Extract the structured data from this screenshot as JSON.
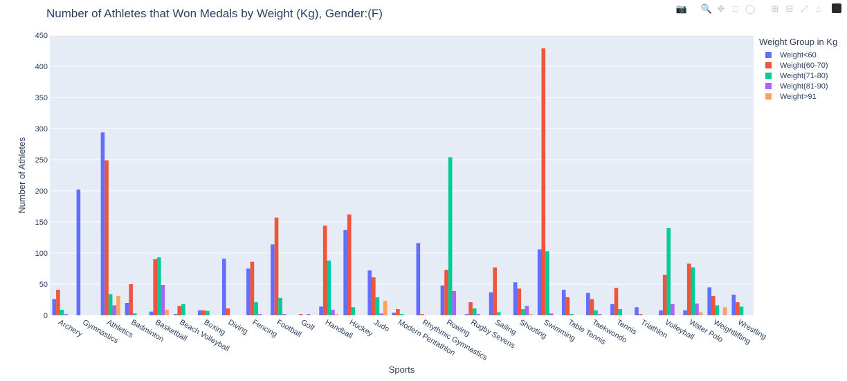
{
  "chart_data": {
    "type": "bar",
    "title": "Number of Athletes that Won Medals by Weight (Kg), Gender:(F)",
    "xlabel": "Sports",
    "ylabel": "Number of Athletes",
    "ylim": [
      0,
      450
    ],
    "yticks": [
      0,
      50,
      100,
      150,
      200,
      250,
      300,
      350,
      400,
      450
    ],
    "grid": true,
    "legend_title": "Weight Group in Kg",
    "legend_position": "top-right",
    "categories": [
      "Archery",
      "Gymnastics",
      "Athletics",
      "Badminton",
      "Basketball",
      "Beach Volleyball",
      "Boxing",
      "Diving",
      "Fencing",
      "Football",
      "Golf",
      "Handball",
      "Hockey",
      "Judo",
      "Modern Pentathlon",
      "Rhythmic Gymnastics",
      "Rowing",
      "Rugby Sevens",
      "Sailing",
      "Shooting",
      "Swimming",
      "Table Tennis",
      "Taekwondo",
      "Tennis",
      "Triathlon",
      "Volleyball",
      "Water Polo",
      "Weightlifting",
      "Wrestling"
    ],
    "series": [
      {
        "name": "Weight<60",
        "color": "#636efa",
        "values": [
          26,
          202,
          294,
          20,
          6,
          2,
          8,
          91,
          75,
          114,
          0,
          14,
          137,
          72,
          4,
          116,
          48,
          2,
          37,
          53,
          106,
          41,
          36,
          18,
          13,
          8,
          8,
          45,
          33
        ]
      },
      {
        "name": "Weight(60-70)",
        "color": "#ef553b",
        "values": [
          41,
          0,
          249,
          50,
          90,
          15,
          8,
          11,
          86,
          157,
          2,
          144,
          162,
          61,
          10,
          2,
          73,
          21,
          77,
          43,
          429,
          29,
          26,
          44,
          2,
          65,
          83,
          31,
          21
        ]
      },
      {
        "name": "Weight(71-80)",
        "color": "#00cc96",
        "values": [
          9,
          0,
          34,
          3,
          93,
          18,
          7,
          0,
          21,
          28,
          0,
          88,
          13,
          29,
          2,
          0,
          254,
          11,
          5,
          10,
          103,
          2,
          8,
          10,
          0,
          140,
          77,
          16,
          14
        ]
      },
      {
        "name": "Weight(81-90)",
        "color": "#ab63fa",
        "values": [
          2,
          0,
          16,
          0,
          49,
          0,
          0,
          0,
          2,
          2,
          2,
          9,
          0,
          3,
          0,
          0,
          39,
          2,
          0,
          15,
          3,
          0,
          2,
          0,
          0,
          18,
          19,
          0,
          0
        ]
      },
      {
        "name": "Weight>91",
        "color": "#ffa15a",
        "values": [
          0,
          0,
          31,
          0,
          9,
          0,
          0,
          0,
          0,
          0,
          0,
          2,
          0,
          23,
          0,
          0,
          0,
          0,
          0,
          2,
          0,
          0,
          0,
          0,
          0,
          0,
          5,
          13,
          0
        ]
      }
    ]
  },
  "modebar": {
    "buttons": [
      "camera-icon",
      "zoom-icon",
      "pan-icon",
      "box-select-icon",
      "lasso-icon",
      "zoom-in-icon",
      "zoom-out-icon",
      "autoscale-icon",
      "reset-axes-icon",
      "plotly-logo-icon"
    ]
  }
}
